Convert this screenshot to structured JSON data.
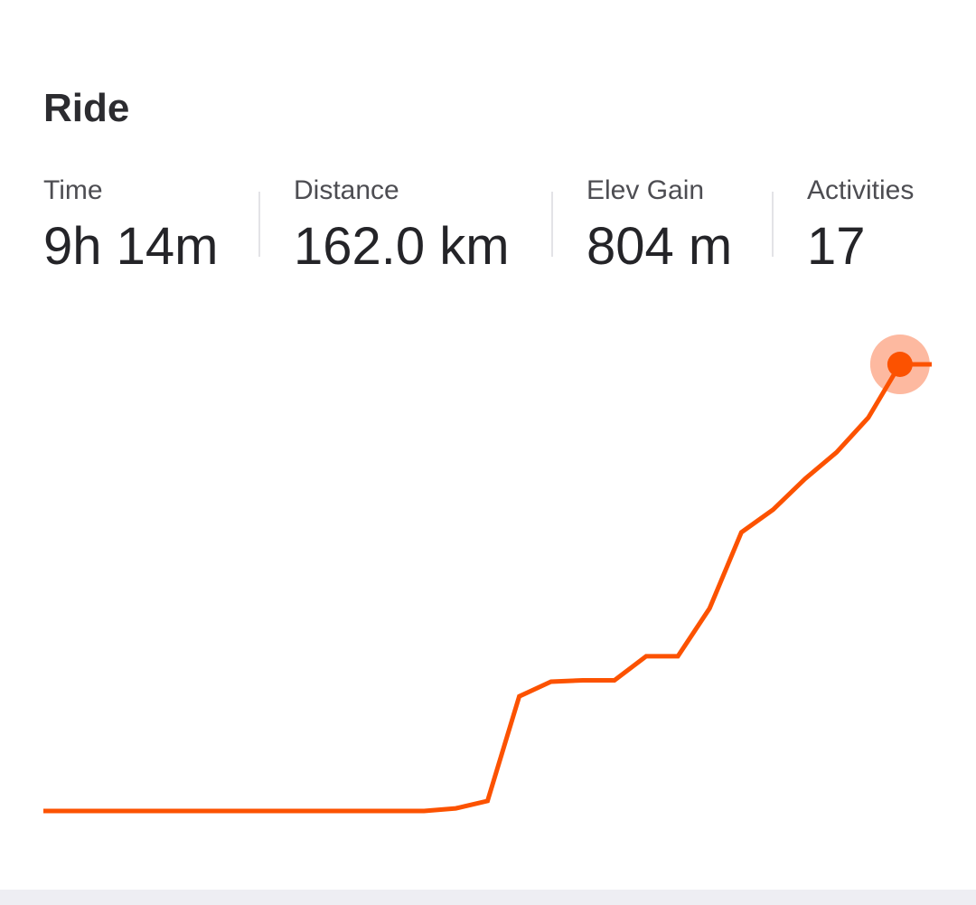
{
  "title": "Ride",
  "stats": [
    {
      "label": "Time",
      "value": "9h 14m"
    },
    {
      "label": "Distance",
      "value": "162.0 km"
    },
    {
      "label": "Elev Gain",
      "value": "804 m"
    },
    {
      "label": "Activities",
      "value": "17"
    }
  ],
  "colors": {
    "line": "#fc5200",
    "marker_halo": "#fdb9a0",
    "divider": "#e3e3e7",
    "bottom_strip": "#eeeef3"
  },
  "chart_data": {
    "type": "line",
    "series": [
      {
        "values": [
          0,
          0,
          0,
          0,
          0,
          0,
          0,
          0,
          0,
          0,
          0,
          0,
          0,
          0.2,
          0.75,
          8.6,
          9.7,
          9.8,
          9.8,
          11.6,
          11.6,
          15.2,
          20.9,
          22.6,
          24.9,
          26.9,
          29.5,
          33.5,
          33.5
        ]
      }
    ],
    "ylim": [
      0,
      33.5
    ],
    "grid": false,
    "highlight_last_point": true
  }
}
